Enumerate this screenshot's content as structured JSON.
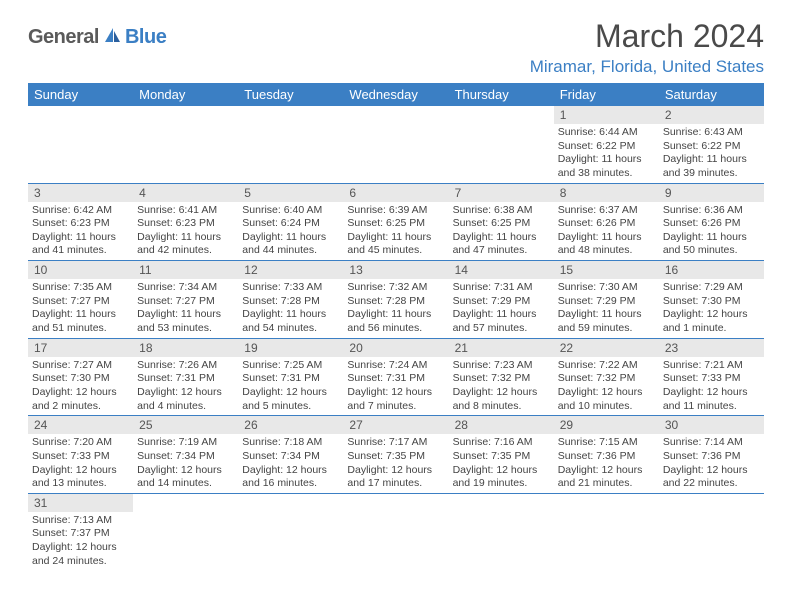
{
  "logo": {
    "text1": "General",
    "text2": "Blue"
  },
  "title": "March 2024",
  "location": "Miramar, Florida, United States",
  "colors": {
    "header_bg": "#3b7fc4",
    "header_text": "#ffffff",
    "daynum_bg": "#e8e8e8",
    "border": "#3b7fc4",
    "logo_gray": "#5a5a5a",
    "logo_blue": "#3b7fc4"
  },
  "weekdays": [
    "Sunday",
    "Monday",
    "Tuesday",
    "Wednesday",
    "Thursday",
    "Friday",
    "Saturday"
  ],
  "weeks": [
    [
      null,
      null,
      null,
      null,
      null,
      {
        "n": "1",
        "sr": "Sunrise: 6:44 AM",
        "ss": "Sunset: 6:22 PM",
        "d1": "Daylight: 11 hours",
        "d2": "and 38 minutes."
      },
      {
        "n": "2",
        "sr": "Sunrise: 6:43 AM",
        "ss": "Sunset: 6:22 PM",
        "d1": "Daylight: 11 hours",
        "d2": "and 39 minutes."
      }
    ],
    [
      {
        "n": "3",
        "sr": "Sunrise: 6:42 AM",
        "ss": "Sunset: 6:23 PM",
        "d1": "Daylight: 11 hours",
        "d2": "and 41 minutes."
      },
      {
        "n": "4",
        "sr": "Sunrise: 6:41 AM",
        "ss": "Sunset: 6:23 PM",
        "d1": "Daylight: 11 hours",
        "d2": "and 42 minutes."
      },
      {
        "n": "5",
        "sr": "Sunrise: 6:40 AM",
        "ss": "Sunset: 6:24 PM",
        "d1": "Daylight: 11 hours",
        "d2": "and 44 minutes."
      },
      {
        "n": "6",
        "sr": "Sunrise: 6:39 AM",
        "ss": "Sunset: 6:25 PM",
        "d1": "Daylight: 11 hours",
        "d2": "and 45 minutes."
      },
      {
        "n": "7",
        "sr": "Sunrise: 6:38 AM",
        "ss": "Sunset: 6:25 PM",
        "d1": "Daylight: 11 hours",
        "d2": "and 47 minutes."
      },
      {
        "n": "8",
        "sr": "Sunrise: 6:37 AM",
        "ss": "Sunset: 6:26 PM",
        "d1": "Daylight: 11 hours",
        "d2": "and 48 minutes."
      },
      {
        "n": "9",
        "sr": "Sunrise: 6:36 AM",
        "ss": "Sunset: 6:26 PM",
        "d1": "Daylight: 11 hours",
        "d2": "and 50 minutes."
      }
    ],
    [
      {
        "n": "10",
        "sr": "Sunrise: 7:35 AM",
        "ss": "Sunset: 7:27 PM",
        "d1": "Daylight: 11 hours",
        "d2": "and 51 minutes."
      },
      {
        "n": "11",
        "sr": "Sunrise: 7:34 AM",
        "ss": "Sunset: 7:27 PM",
        "d1": "Daylight: 11 hours",
        "d2": "and 53 minutes."
      },
      {
        "n": "12",
        "sr": "Sunrise: 7:33 AM",
        "ss": "Sunset: 7:28 PM",
        "d1": "Daylight: 11 hours",
        "d2": "and 54 minutes."
      },
      {
        "n": "13",
        "sr": "Sunrise: 7:32 AM",
        "ss": "Sunset: 7:28 PM",
        "d1": "Daylight: 11 hours",
        "d2": "and 56 minutes."
      },
      {
        "n": "14",
        "sr": "Sunrise: 7:31 AM",
        "ss": "Sunset: 7:29 PM",
        "d1": "Daylight: 11 hours",
        "d2": "and 57 minutes."
      },
      {
        "n": "15",
        "sr": "Sunrise: 7:30 AM",
        "ss": "Sunset: 7:29 PM",
        "d1": "Daylight: 11 hours",
        "d2": "and 59 minutes."
      },
      {
        "n": "16",
        "sr": "Sunrise: 7:29 AM",
        "ss": "Sunset: 7:30 PM",
        "d1": "Daylight: 12 hours",
        "d2": "and 1 minute."
      }
    ],
    [
      {
        "n": "17",
        "sr": "Sunrise: 7:27 AM",
        "ss": "Sunset: 7:30 PM",
        "d1": "Daylight: 12 hours",
        "d2": "and 2 minutes."
      },
      {
        "n": "18",
        "sr": "Sunrise: 7:26 AM",
        "ss": "Sunset: 7:31 PM",
        "d1": "Daylight: 12 hours",
        "d2": "and 4 minutes."
      },
      {
        "n": "19",
        "sr": "Sunrise: 7:25 AM",
        "ss": "Sunset: 7:31 PM",
        "d1": "Daylight: 12 hours",
        "d2": "and 5 minutes."
      },
      {
        "n": "20",
        "sr": "Sunrise: 7:24 AM",
        "ss": "Sunset: 7:31 PM",
        "d1": "Daylight: 12 hours",
        "d2": "and 7 minutes."
      },
      {
        "n": "21",
        "sr": "Sunrise: 7:23 AM",
        "ss": "Sunset: 7:32 PM",
        "d1": "Daylight: 12 hours",
        "d2": "and 8 minutes."
      },
      {
        "n": "22",
        "sr": "Sunrise: 7:22 AM",
        "ss": "Sunset: 7:32 PM",
        "d1": "Daylight: 12 hours",
        "d2": "and 10 minutes."
      },
      {
        "n": "23",
        "sr": "Sunrise: 7:21 AM",
        "ss": "Sunset: 7:33 PM",
        "d1": "Daylight: 12 hours",
        "d2": "and 11 minutes."
      }
    ],
    [
      {
        "n": "24",
        "sr": "Sunrise: 7:20 AM",
        "ss": "Sunset: 7:33 PM",
        "d1": "Daylight: 12 hours",
        "d2": "and 13 minutes."
      },
      {
        "n": "25",
        "sr": "Sunrise: 7:19 AM",
        "ss": "Sunset: 7:34 PM",
        "d1": "Daylight: 12 hours",
        "d2": "and 14 minutes."
      },
      {
        "n": "26",
        "sr": "Sunrise: 7:18 AM",
        "ss": "Sunset: 7:34 PM",
        "d1": "Daylight: 12 hours",
        "d2": "and 16 minutes."
      },
      {
        "n": "27",
        "sr": "Sunrise: 7:17 AM",
        "ss": "Sunset: 7:35 PM",
        "d1": "Daylight: 12 hours",
        "d2": "and 17 minutes."
      },
      {
        "n": "28",
        "sr": "Sunrise: 7:16 AM",
        "ss": "Sunset: 7:35 PM",
        "d1": "Daylight: 12 hours",
        "d2": "and 19 minutes."
      },
      {
        "n": "29",
        "sr": "Sunrise: 7:15 AM",
        "ss": "Sunset: 7:36 PM",
        "d1": "Daylight: 12 hours",
        "d2": "and 21 minutes."
      },
      {
        "n": "30",
        "sr": "Sunrise: 7:14 AM",
        "ss": "Sunset: 7:36 PM",
        "d1": "Daylight: 12 hours",
        "d2": "and 22 minutes."
      }
    ],
    [
      {
        "n": "31",
        "sr": "Sunrise: 7:13 AM",
        "ss": "Sunset: 7:37 PM",
        "d1": "Daylight: 12 hours",
        "d2": "and 24 minutes."
      },
      null,
      null,
      null,
      null,
      null,
      null
    ]
  ]
}
